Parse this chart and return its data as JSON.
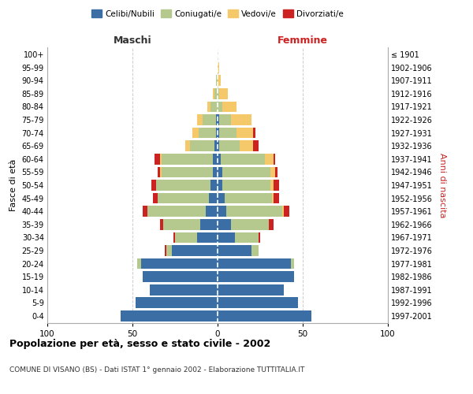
{
  "age_groups": [
    "0-4",
    "5-9",
    "10-14",
    "15-19",
    "20-24",
    "25-29",
    "30-34",
    "35-39",
    "40-44",
    "45-49",
    "50-54",
    "55-59",
    "60-64",
    "65-69",
    "70-74",
    "75-79",
    "80-84",
    "85-89",
    "90-94",
    "95-99",
    "100+"
  ],
  "birth_years": [
    "1997-2001",
    "1992-1996",
    "1987-1991",
    "1982-1986",
    "1977-1981",
    "1972-1976",
    "1967-1971",
    "1962-1966",
    "1957-1961",
    "1952-1956",
    "1947-1951",
    "1942-1946",
    "1937-1941",
    "1932-1936",
    "1927-1931",
    "1922-1926",
    "1917-1921",
    "1912-1916",
    "1907-1911",
    "1902-1906",
    "≤ 1901"
  ],
  "males": {
    "celibi": [
      57,
      48,
      40,
      44,
      45,
      27,
      12,
      10,
      7,
      5,
      4,
      3,
      3,
      2,
      1,
      1,
      0,
      0,
      0,
      0,
      0
    ],
    "coniugati": [
      0,
      0,
      0,
      0,
      2,
      3,
      13,
      22,
      34,
      30,
      32,
      30,
      30,
      14,
      10,
      8,
      4,
      2,
      1,
      0,
      0
    ],
    "vedovi": [
      0,
      0,
      0,
      0,
      0,
      0,
      0,
      0,
      0,
      0,
      0,
      1,
      1,
      3,
      4,
      3,
      2,
      1,
      0,
      0,
      0
    ],
    "divorziati": [
      0,
      0,
      0,
      0,
      0,
      1,
      1,
      2,
      3,
      3,
      3,
      1,
      3,
      0,
      0,
      0,
      0,
      0,
      0,
      0,
      0
    ]
  },
  "females": {
    "nubili": [
      55,
      47,
      39,
      45,
      43,
      20,
      10,
      8,
      5,
      4,
      3,
      3,
      2,
      1,
      1,
      1,
      0,
      0,
      0,
      0,
      0
    ],
    "coniugate": [
      0,
      0,
      0,
      0,
      2,
      4,
      14,
      22,
      33,
      28,
      28,
      28,
      26,
      12,
      10,
      7,
      3,
      1,
      0,
      0,
      0
    ],
    "vedove": [
      0,
      0,
      0,
      0,
      0,
      0,
      0,
      0,
      1,
      1,
      2,
      3,
      5,
      8,
      10,
      12,
      8,
      5,
      2,
      1,
      0
    ],
    "divorziate": [
      0,
      0,
      0,
      0,
      0,
      0,
      1,
      3,
      3,
      3,
      3,
      1,
      1,
      3,
      1,
      0,
      0,
      0,
      0,
      0,
      0
    ]
  },
  "colors": {
    "celibi": "#3a6ea5",
    "coniugati": "#b5c98e",
    "vedovi": "#f5c96a",
    "divorziati": "#cc2222"
  },
  "title": "Popolazione per età, sesso e stato civile - 2002",
  "subtitle": "COMUNE DI VISANO (BS) - Dati ISTAT 1° gennaio 2002 - Elaborazione TUTTITALIA.IT",
  "xlabel_left": "Maschi",
  "xlabel_right": "Femmine",
  "ylabel_left": "Fasce di età",
  "ylabel_right": "Anni di nascita",
  "xlim": 100,
  "bg_color": "#ffffff",
  "grid_color": "#cccccc"
}
